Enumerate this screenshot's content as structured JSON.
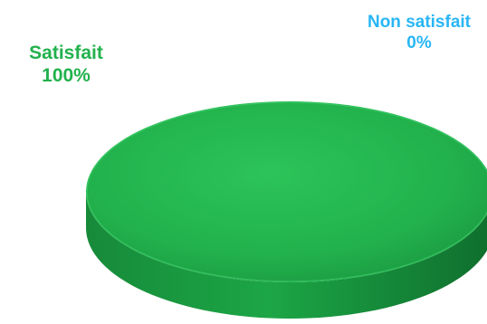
{
  "chart_data": {
    "type": "pie",
    "style": "3d",
    "slices": [
      {
        "label": "Satisfait",
        "value": 100,
        "display": "100%",
        "color": "#22b14c"
      },
      {
        "label": "Non satisfait",
        "value": 0,
        "display": "0%",
        "color": "#29b6f6"
      }
    ],
    "legend": "none"
  }
}
